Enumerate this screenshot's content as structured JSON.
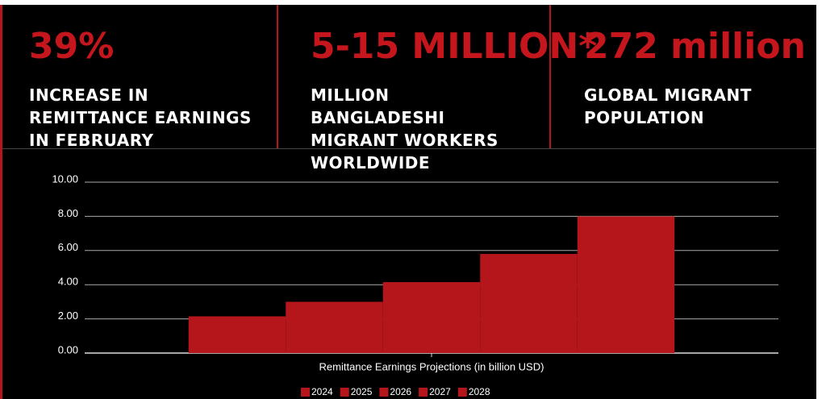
{
  "stats": [
    {
      "value": "39%",
      "label": "INCREASE IN REMITTANCE EARNINGS IN FEBRUARY"
    },
    {
      "value": "5-15 MILLION*",
      "label": "MILLION BANGLADESHI MIGRANT WORKERS WORLDWIDE"
    },
    {
      "value": "272 million",
      "label": "GLOBAL MIGRANT POPULATION"
    }
  ],
  "chart_data": {
    "type": "bar",
    "xlabel": "Remittance Earnings Projections (in billion USD)",
    "categories": [
      null
    ],
    "series": [
      {
        "name": "2024",
        "color": "#b5161b",
        "values": [
          2.15
        ]
      },
      {
        "name": "2025",
        "color": "#b5161b",
        "values": [
          3.0
        ]
      },
      {
        "name": "2026",
        "color": "#b5161b",
        "values": [
          4.15
        ]
      },
      {
        "name": "2027",
        "color": "#b5161b",
        "values": [
          5.8
        ]
      },
      {
        "name": "2028",
        "color": "#b5161b",
        "values": [
          8.0
        ]
      }
    ],
    "ylim": [
      0,
      10
    ],
    "yticks": [
      {
        "value": 0,
        "label": "0.00"
      },
      {
        "value": 2,
        "label": "2.00"
      },
      {
        "value": 4,
        "label": "4.00"
      },
      {
        "value": 6,
        "label": "6.00"
      },
      {
        "value": 8,
        "label": "8.00"
      },
      {
        "value": 10,
        "label": "10.00"
      }
    ],
    "grid": true,
    "legend": "bottom"
  }
}
